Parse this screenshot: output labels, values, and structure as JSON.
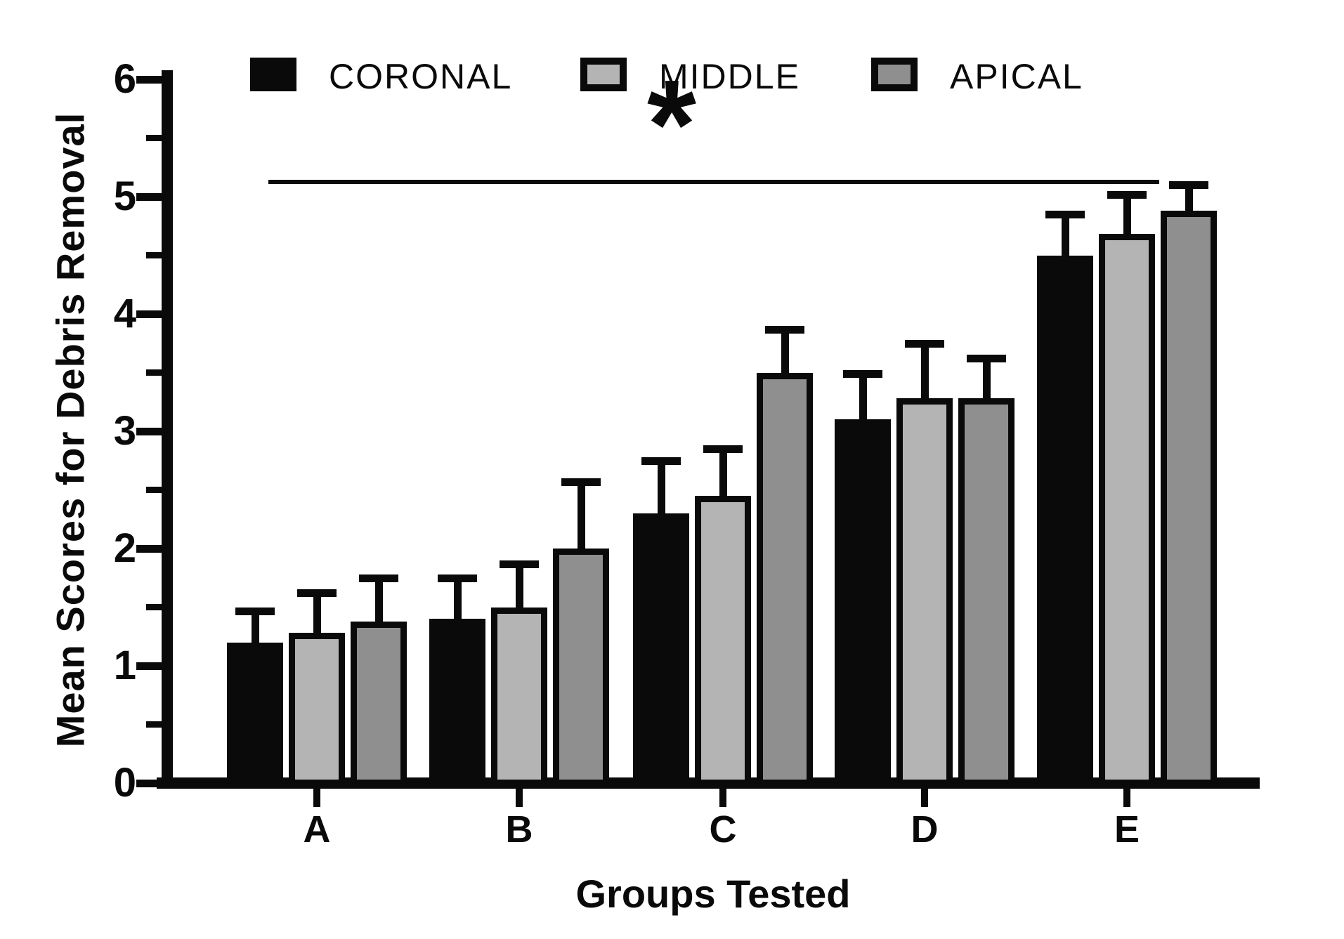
{
  "chart_data": {
    "type": "bar",
    "title": "",
    "categories": [
      "A",
      "B",
      "C",
      "D",
      "E"
    ],
    "series": [
      {
        "name": "CORONAL",
        "color": "#0a0a0a",
        "values": [
          1.2,
          1.4,
          2.3,
          3.1,
          4.5
        ],
        "error_top": [
          1.5,
          1.78,
          2.78,
          3.52,
          4.88
        ]
      },
      {
        "name": "MIDDLE",
        "color": "#b4b4b4",
        "values": [
          1.28,
          1.5,
          2.45,
          3.28,
          4.68
        ],
        "error_top": [
          1.65,
          1.9,
          2.88,
          3.78,
          5.05
        ]
      },
      {
        "name": "APICAL",
        "color": "#8f8f8f",
        "values": [
          1.38,
          2.0,
          3.5,
          3.28,
          4.88
        ],
        "error_top": [
          1.78,
          2.6,
          3.9,
          3.65,
          5.13
        ]
      }
    ],
    "xlabel": "Groups Tested",
    "ylabel": "Mean Scores for Debris Removal",
    "ylim": [
      0,
      6
    ],
    "yticks": [
      0,
      1,
      2,
      3,
      4,
      5,
      6
    ],
    "minor_tick_step": 0.5,
    "grid": false,
    "legend_position": "top",
    "bar_border_color": "#0a0a0a",
    "background": "#ffffff",
    "annotation": {
      "symbol": "*",
      "meaning": "significance bracket spanning all groups",
      "spans_groups": [
        "A",
        "E"
      ],
      "line_y_value": 5.15
    }
  }
}
